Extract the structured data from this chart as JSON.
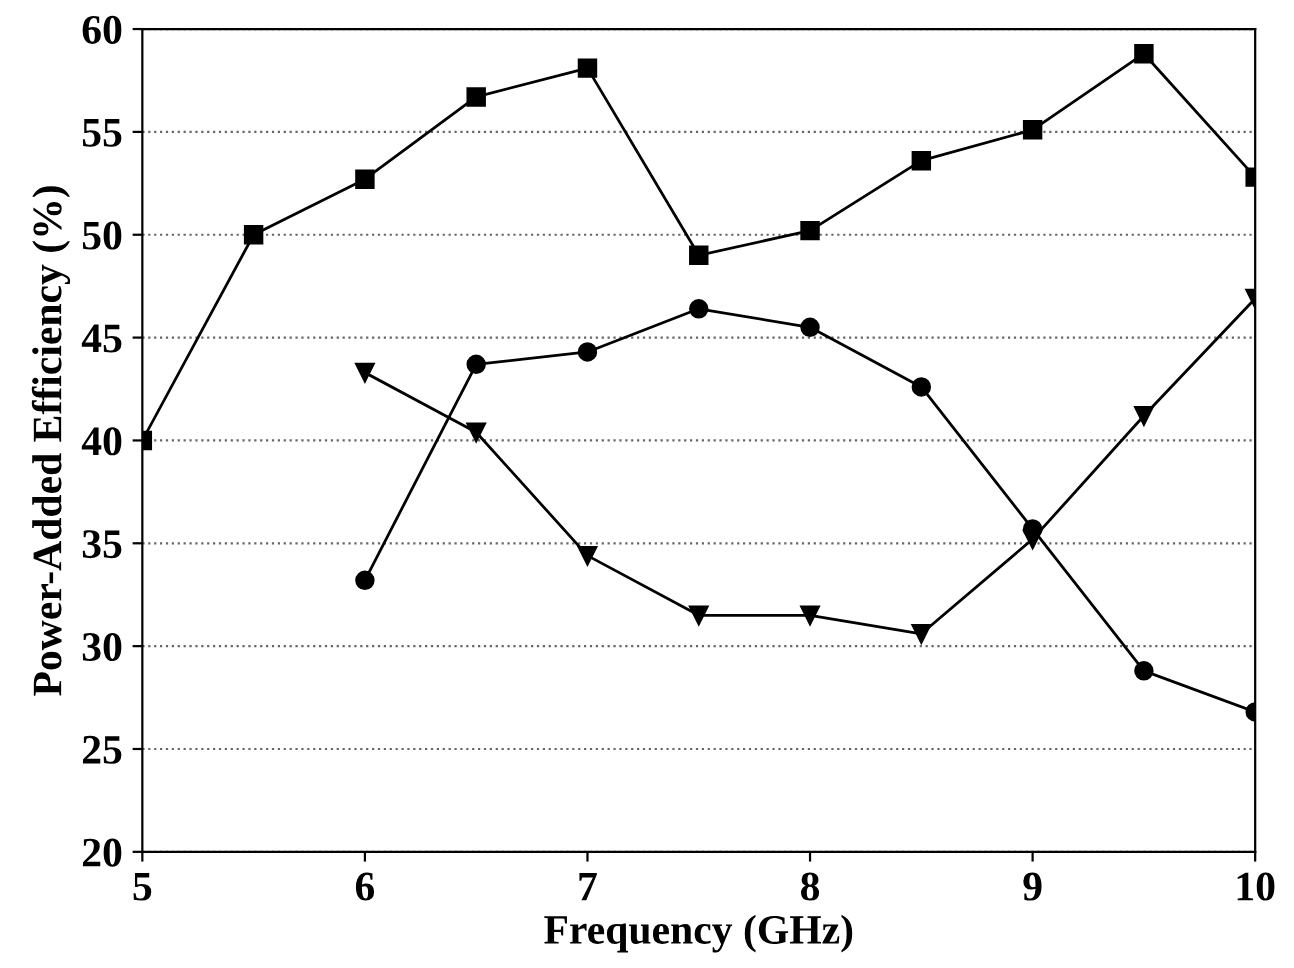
{
  "chart_data": {
    "type": "line",
    "xlabel": "Frequency (GHz)",
    "ylabel": "Power-Added Efficiency (%)",
    "xlim": [
      5,
      10
    ],
    "xticks": [
      5,
      6,
      7,
      8,
      9,
      10
    ],
    "ylim": [
      20,
      60
    ],
    "yticks": [
      20,
      25,
      30,
      35,
      40,
      45,
      50,
      55,
      60
    ],
    "grid": "y",
    "line_style": "solid",
    "series": [
      {
        "color": "#000000",
        "marker": "square",
        "x": [
          5,
          5.5,
          6,
          6.5,
          7,
          7.5,
          8,
          8.5,
          9,
          9.5,
          10
        ],
        "values": [
          40,
          50,
          52.7,
          56.7,
          58.1,
          49,
          50.2,
          53.6,
          55.1,
          58.8,
          52.8
        ]
      },
      {
        "color": "#000000",
        "marker": "circle",
        "x": [
          6,
          6.5,
          7,
          7.5,
          8,
          8.5,
          9,
          9.5,
          10
        ],
        "values": [
          33.2,
          43.7,
          44.3,
          46.4,
          45.5,
          42.6,
          35.7,
          28.8,
          26.8
        ]
      },
      {
        "color": "#000000",
        "marker": "triangle",
        "x": [
          6,
          6.5,
          7,
          7.5,
          8,
          8.5,
          9,
          9.5,
          10
        ],
        "values": [
          43.3,
          40.4,
          34.4,
          31.5,
          31.5,
          30.6,
          35.2,
          41.2,
          46.9
        ]
      }
    ]
  }
}
